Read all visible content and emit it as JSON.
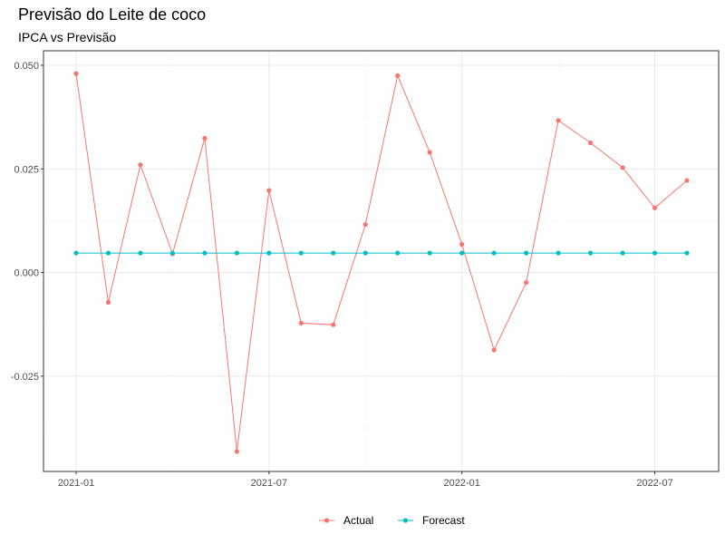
{
  "chart_data": {
    "type": "line",
    "title": "Previsão do Leite de coco",
    "subtitle": "IPCA vs Previsão",
    "x": [
      "2021-01",
      "2021-02",
      "2021-03",
      "2021-04",
      "2021-05",
      "2021-06",
      "2021-07",
      "2021-08",
      "2021-09",
      "2021-10",
      "2021-11",
      "2021-12",
      "2022-01",
      "2022-02",
      "2022-03",
      "2022-04",
      "2022-05",
      "2022-06",
      "2022-07",
      "2022-08"
    ],
    "x_tick_labels": [
      "2021-01",
      "2021-07",
      "2022-01",
      "2022-07"
    ],
    "y_tick_values": [
      -0.025,
      0.0,
      0.025,
      0.05
    ],
    "y_tick_labels": [
      "-0.025",
      "0.000",
      "0.025",
      "0.050"
    ],
    "ylim": [
      -0.048,
      0.0535
    ],
    "grid": true,
    "legend_position": "bottom",
    "series": [
      {
        "name": "Actual",
        "color": "#F8766D",
        "values": [
          0.048,
          -0.0072,
          0.026,
          0.0045,
          0.0324,
          -0.0432,
          0.0198,
          -0.0122,
          -0.0126,
          0.0116,
          0.0475,
          0.029,
          0.0068,
          -0.0187,
          -0.0024,
          0.0367,
          0.0313,
          0.0253,
          0.0156,
          0.0222
        ]
      },
      {
        "name": "Forecast",
        "color": "#00BFC4",
        "values": [
          0.0047,
          0.0047,
          0.0047,
          0.0047,
          0.0047,
          0.0047,
          0.0047,
          0.0047,
          0.0047,
          0.0047,
          0.0047,
          0.0047,
          0.0047,
          0.0047,
          0.0047,
          0.0047,
          0.0047,
          0.0047,
          0.0047,
          0.0047
        ]
      }
    ]
  }
}
